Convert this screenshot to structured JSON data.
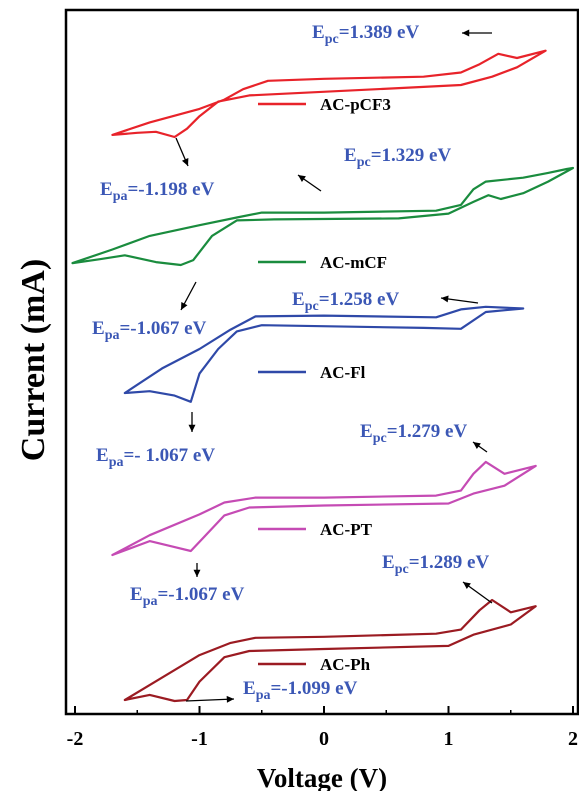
{
  "chart_data": {
    "type": "line",
    "xlabel": "Voltage (V)",
    "ylabel": "Current (mA)",
    "xlim": [
      -2.0,
      2.0
    ],
    "xticks": [
      -2,
      -1,
      0,
      1,
      2
    ],
    "xtick_labels": [
      "-2",
      "-1",
      "0",
      "1",
      "2"
    ],
    "y_ticks_shown": false,
    "grid": false,
    "annotation_color": "#3b57b5",
    "series": [
      {
        "name": "AC-pCF3",
        "color": "#e8232a",
        "upper": [
          [
            -1.7,
            0.02
          ],
          [
            -1.4,
            0.14
          ],
          [
            -1.0,
            0.27
          ],
          [
            -0.8,
            0.36
          ],
          [
            -0.65,
            0.46
          ],
          [
            -0.45,
            0.54
          ],
          [
            0.0,
            0.56
          ],
          [
            0.8,
            0.58
          ],
          [
            1.1,
            0.62
          ],
          [
            1.25,
            0.7
          ],
          [
            1.4,
            0.8
          ],
          [
            1.55,
            0.76
          ],
          [
            1.78,
            0.83
          ]
        ],
        "lower": [
          [
            1.78,
            0.83
          ],
          [
            1.55,
            0.67
          ],
          [
            1.35,
            0.58
          ],
          [
            1.1,
            0.5
          ],
          [
            0.6,
            0.47
          ],
          [
            -0.6,
            0.4
          ],
          [
            -0.85,
            0.34
          ],
          [
            -1.0,
            0.2
          ],
          [
            -1.1,
            0.08
          ],
          [
            -1.2,
            0.0
          ],
          [
            -1.35,
            0.05
          ],
          [
            -1.5,
            0.04
          ],
          [
            -1.7,
            0.02
          ]
        ]
      },
      {
        "name": "AC-mCF",
        "color": "#1a8c3e",
        "upper": [
          [
            -2.02,
            0.02
          ],
          [
            -1.7,
            0.16
          ],
          [
            -1.4,
            0.3
          ],
          [
            -1.0,
            0.41
          ],
          [
            -0.7,
            0.49
          ],
          [
            -0.5,
            0.54
          ],
          [
            0.0,
            0.54
          ],
          [
            0.9,
            0.56
          ],
          [
            1.1,
            0.62
          ],
          [
            1.2,
            0.78
          ],
          [
            1.3,
            0.86
          ],
          [
            1.6,
            0.9
          ],
          [
            1.8,
            0.95
          ],
          [
            1.95,
            0.99
          ],
          [
            2.0,
            1.0
          ]
        ],
        "lower": [
          [
            2.0,
            1.0
          ],
          [
            1.8,
            0.86
          ],
          [
            1.6,
            0.74
          ],
          [
            1.42,
            0.68
          ],
          [
            1.32,
            0.72
          ],
          [
            1.2,
            0.65
          ],
          [
            1.0,
            0.53
          ],
          [
            0.6,
            0.48
          ],
          [
            -0.4,
            0.47
          ],
          [
            -0.7,
            0.46
          ],
          [
            -0.9,
            0.3
          ],
          [
            -1.05,
            0.05
          ],
          [
            -1.15,
            0.0
          ],
          [
            -1.35,
            0.03
          ],
          [
            -1.6,
            0.1
          ],
          [
            -1.8,
            0.06
          ],
          [
            -2.02,
            0.02
          ]
        ]
      },
      {
        "name": "AC-Fl",
        "color": "#2f49a8",
        "upper": [
          [
            -1.6,
            0.0
          ],
          [
            -1.3,
            0.28
          ],
          [
            -1.0,
            0.5
          ],
          [
            -0.75,
            0.72
          ],
          [
            -0.55,
            0.87
          ],
          [
            0.0,
            0.88
          ],
          [
            0.9,
            0.86
          ],
          [
            1.1,
            0.95
          ],
          [
            1.3,
            0.98
          ],
          [
            1.6,
            0.96
          ]
        ],
        "lower": [
          [
            1.6,
            0.96
          ],
          [
            1.3,
            0.92
          ],
          [
            1.1,
            0.73
          ],
          [
            0.8,
            0.74
          ],
          [
            -0.5,
            0.77
          ],
          [
            -0.7,
            0.7
          ],
          [
            -0.85,
            0.5
          ],
          [
            -1.0,
            0.22
          ],
          [
            -1.07,
            -0.1
          ],
          [
            -1.2,
            -0.03
          ],
          [
            -1.4,
            0.02
          ],
          [
            -1.6,
            0.0
          ]
        ]
      },
      {
        "name": "AC-PT",
        "color": "#c54bb4",
        "upper": [
          [
            -1.7,
            0.0
          ],
          [
            -1.4,
            0.2
          ],
          [
            -1.0,
            0.41
          ],
          [
            -0.8,
            0.53
          ],
          [
            -0.55,
            0.58
          ],
          [
            0.0,
            0.58
          ],
          [
            0.9,
            0.6
          ],
          [
            1.1,
            0.65
          ],
          [
            1.2,
            0.82
          ],
          [
            1.3,
            0.94
          ],
          [
            1.45,
            0.82
          ],
          [
            1.7,
            0.9
          ]
        ],
        "lower": [
          [
            1.7,
            0.9
          ],
          [
            1.45,
            0.7
          ],
          [
            1.2,
            0.62
          ],
          [
            1.0,
            0.52
          ],
          [
            0.0,
            0.5
          ],
          [
            -0.6,
            0.48
          ],
          [
            -0.8,
            0.4
          ],
          [
            -0.95,
            0.2
          ],
          [
            -1.07,
            0.04
          ],
          [
            -1.2,
            0.08
          ],
          [
            -1.4,
            0.14
          ],
          [
            -1.7,
            0.0
          ]
        ]
      },
      {
        "name": "AC-Ph",
        "color": "#9b1b22",
        "upper": [
          [
            -1.6,
            0.0
          ],
          [
            -1.3,
            0.22
          ],
          [
            -1.0,
            0.44
          ],
          [
            -0.75,
            0.56
          ],
          [
            -0.55,
            0.61
          ],
          [
            0.0,
            0.62
          ],
          [
            0.9,
            0.65
          ],
          [
            1.1,
            0.69
          ],
          [
            1.25,
            0.88
          ],
          [
            1.35,
            0.98
          ],
          [
            1.5,
            0.86
          ],
          [
            1.7,
            0.92
          ]
        ],
        "lower": [
          [
            1.7,
            0.92
          ],
          [
            1.5,
            0.74
          ],
          [
            1.2,
            0.64
          ],
          [
            1.0,
            0.53
          ],
          [
            0.0,
            0.5
          ],
          [
            -0.6,
            0.48
          ],
          [
            -0.8,
            0.42
          ],
          [
            -1.0,
            0.18
          ],
          [
            -1.1,
            0.0
          ],
          [
            -1.2,
            -0.01
          ],
          [
            -1.4,
            0.05
          ],
          [
            -1.6,
            0.0
          ]
        ]
      }
    ]
  },
  "annotations": [
    {
      "sub": "pc",
      "value": "=1.389 eV"
    },
    {
      "sub": "pa",
      "value": "=-1.198 eV"
    },
    {
      "sub": "pc",
      "value": "=1.329 eV"
    },
    {
      "sub": "pa",
      "value": "=-1.067 eV"
    },
    {
      "sub": "pc",
      "value": "=1.258 eV"
    },
    {
      "sub": "pa",
      "value": "=- 1.067 eV"
    },
    {
      "sub": "pc",
      "value": "=1.279 eV"
    },
    {
      "sub": "pa",
      "value": "=-1.067 eV"
    },
    {
      "sub": "pc",
      "value": "=1.289 eV"
    },
    {
      "sub": "pa",
      "value": "=-1.099 eV"
    }
  ]
}
